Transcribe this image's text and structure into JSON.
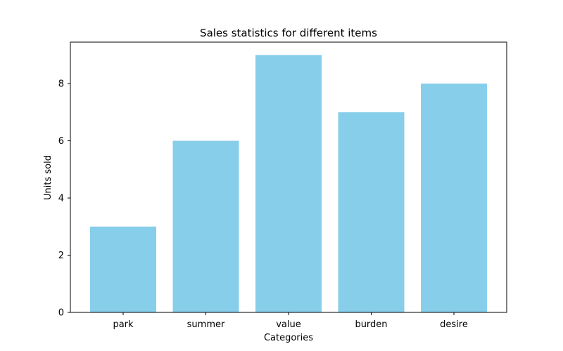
{
  "chart_data": {
    "type": "bar",
    "title": "Sales statistics for different items",
    "xlabel": "Categories",
    "ylabel": "Units sold",
    "categories": [
      "park",
      "summer",
      "value",
      "burden",
      "desire"
    ],
    "values": [
      3,
      6,
      9,
      7,
      8
    ],
    "ylim": [
      0,
      9.45
    ],
    "yticks": [
      0,
      2,
      4,
      6,
      8
    ],
    "grid": false,
    "legend": "none",
    "bar_color": "#87CEEB",
    "axis_color": "#000000"
  }
}
